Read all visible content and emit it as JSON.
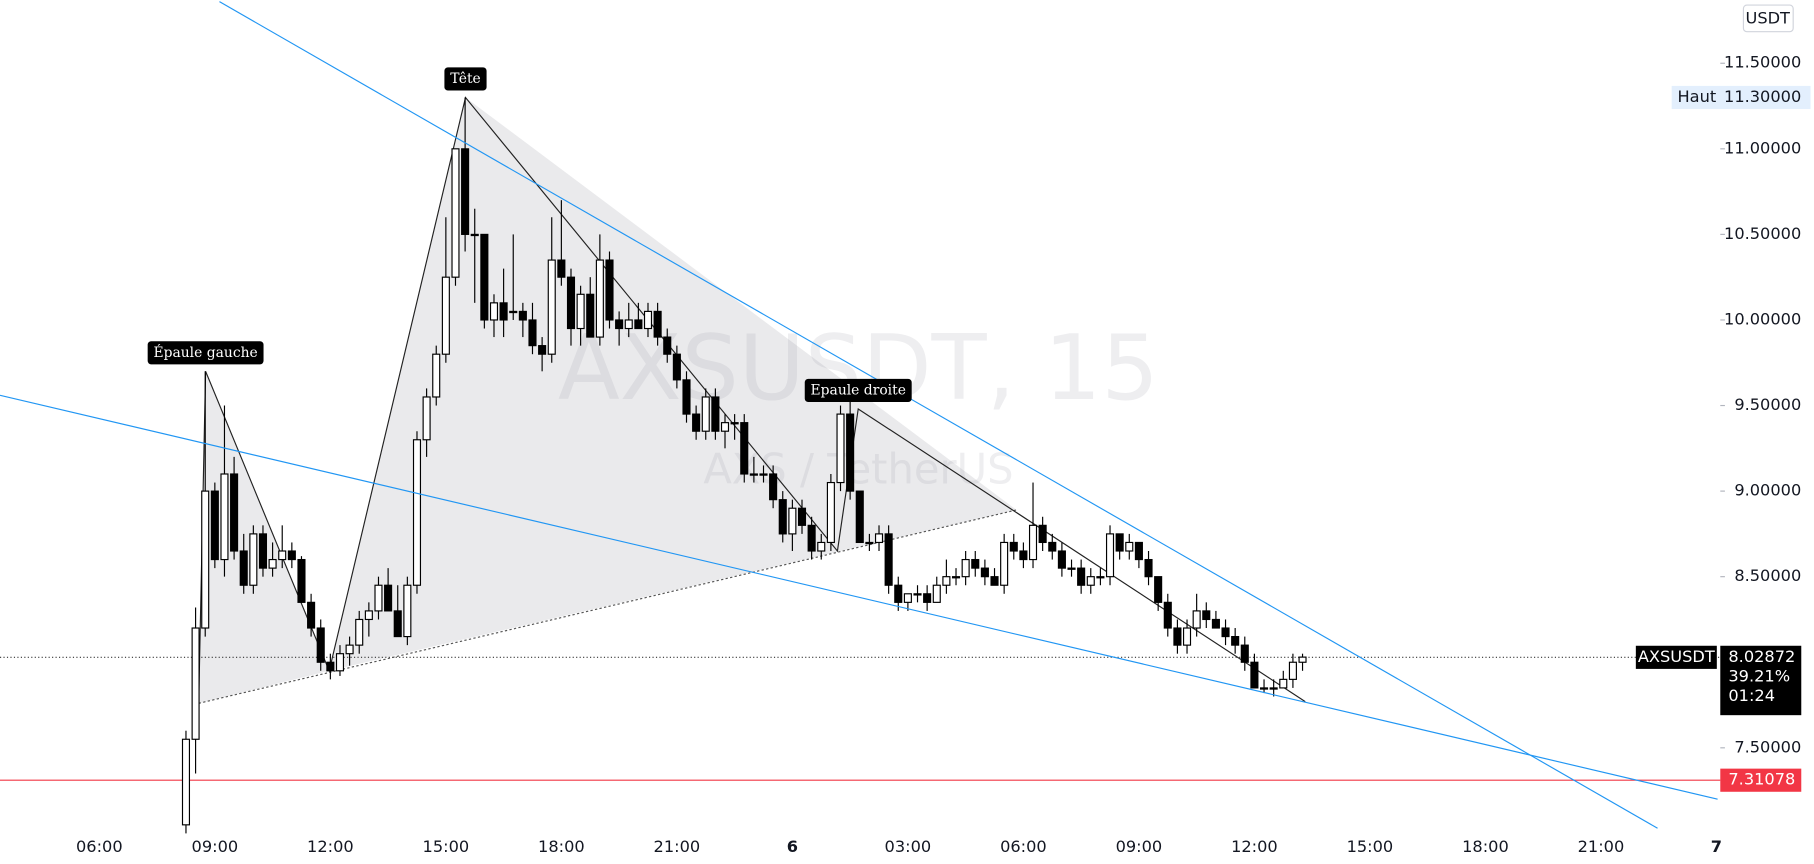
{
  "chart_data": {
    "type": "candlestick",
    "title": "AXSUSDT, 15",
    "subtitle": "AXS / TetherUS",
    "currency": "USDT",
    "symbol": "AXSUSDT",
    "x": [
      8.25,
      8.5,
      8.75,
      9,
      9.25,
      9.5,
      9.75,
      10,
      10.25,
      10.5,
      10.75,
      11,
      11.25,
      11.5,
      11.75,
      12,
      12.25,
      12.5,
      12.75,
      13,
      13.25,
      13.5,
      13.75,
      14,
      14.25,
      14.5,
      14.75,
      15,
      15.25,
      15.5,
      15.75,
      16,
      16.25,
      16.5,
      16.75,
      17,
      17.25,
      17.5,
      17.75,
      18,
      18.25,
      18.5,
      18.75,
      19,
      19.25,
      19.5,
      19.75,
      20,
      20.25,
      20.5,
      20.75,
      21,
      21.25,
      21.5,
      21.75,
      22,
      22.25,
      22.5,
      22.75,
      23,
      23.25,
      23.5,
      23.75,
      24,
      24.25,
      24.5,
      24.75,
      25,
      25.25,
      25.5,
      25.75,
      26,
      26.25,
      26.5,
      26.75,
      27,
      27.25,
      27.5,
      27.75,
      28,
      28.25,
      28.5,
      28.75,
      29,
      29.25,
      29.5,
      29.75,
      30,
      30.25,
      30.5,
      30.75,
      31,
      31.25,
      31.5,
      31.75,
      32,
      32.25,
      32.5,
      32.75,
      33,
      33.25,
      33.5,
      33.75,
      34,
      34.25,
      34.5,
      34.75,
      35,
      35.25,
      35.5,
      35.75,
      36,
      36.25,
      36.5,
      36.75,
      37,
      37.25
    ],
    "ohlc": [
      [
        7.05,
        7.6,
        7.0,
        7.55
      ],
      [
        7.55,
        8.32,
        7.35,
        8.2
      ],
      [
        8.2,
        9.7,
        8.15,
        9.0
      ],
      [
        9.0,
        9.05,
        8.55,
        8.6
      ],
      [
        8.6,
        9.5,
        8.5,
        9.1
      ],
      [
        9.1,
        9.2,
        8.6,
        8.65
      ],
      [
        8.65,
        8.75,
        8.4,
        8.45
      ],
      [
        8.45,
        8.8,
        8.4,
        8.75
      ],
      [
        8.75,
        8.8,
        8.5,
        8.55
      ],
      [
        8.55,
        8.7,
        8.5,
        8.6
      ],
      [
        8.6,
        8.8,
        8.55,
        8.65
      ],
      [
        8.65,
        8.7,
        8.55,
        8.6
      ],
      [
        8.6,
        8.62,
        8.35,
        8.35
      ],
      [
        8.35,
        8.4,
        8.15,
        8.2
      ],
      [
        8.2,
        8.25,
        7.95,
        8.0
      ],
      [
        8.0,
        8.05,
        7.9,
        7.95
      ],
      [
        7.95,
        8.1,
        7.92,
        8.05
      ],
      [
        8.05,
        8.15,
        7.98,
        8.1
      ],
      [
        8.1,
        8.3,
        8.05,
        8.25
      ],
      [
        8.25,
        8.35,
        8.15,
        8.3
      ],
      [
        8.3,
        8.5,
        8.25,
        8.45
      ],
      [
        8.45,
        8.55,
        8.3,
        8.3
      ],
      [
        8.3,
        8.45,
        8.15,
        8.15
      ],
      [
        8.15,
        8.5,
        8.1,
        8.45
      ],
      [
        8.45,
        9.35,
        8.4,
        9.3
      ],
      [
        9.3,
        9.6,
        9.2,
        9.55
      ],
      [
        9.55,
        9.85,
        9.5,
        9.8
      ],
      [
        9.8,
        10.6,
        9.75,
        10.25
      ],
      [
        10.25,
        11.0,
        10.2,
        11.0
      ],
      [
        11.0,
        11.3,
        10.4,
        10.5
      ],
      [
        10.5,
        10.65,
        10.1,
        10.5
      ],
      [
        10.5,
        10.5,
        9.95,
        10.0
      ],
      [
        10.0,
        10.15,
        9.9,
        10.1
      ],
      [
        10.1,
        10.3,
        9.9,
        10.0
      ],
      [
        10.05,
        10.5,
        10.0,
        10.05
      ],
      [
        10.05,
        10.1,
        9.9,
        10.0
      ],
      [
        10.0,
        10.1,
        9.8,
        9.85
      ],
      [
        9.85,
        9.9,
        9.7,
        9.8
      ],
      [
        9.8,
        10.6,
        9.75,
        10.35
      ],
      [
        10.35,
        10.7,
        10.2,
        10.25
      ],
      [
        10.25,
        10.3,
        9.85,
        9.95
      ],
      [
        9.95,
        10.2,
        9.85,
        10.15
      ],
      [
        10.15,
        10.25,
        9.9,
        9.9
      ],
      [
        9.9,
        10.5,
        9.85,
        10.35
      ],
      [
        10.35,
        10.4,
        9.95,
        10.0
      ],
      [
        10.0,
        10.05,
        9.85,
        9.95
      ],
      [
        9.95,
        10.1,
        9.9,
        10.0
      ],
      [
        10.0,
        10.1,
        9.95,
        9.95
      ],
      [
        9.95,
        10.1,
        9.9,
        10.05
      ],
      [
        10.05,
        10.1,
        9.85,
        9.9
      ],
      [
        9.9,
        9.95,
        9.75,
        9.8
      ],
      [
        9.8,
        9.85,
        9.6,
        9.65
      ],
      [
        9.65,
        9.7,
        9.4,
        9.45
      ],
      [
        9.45,
        9.5,
        9.3,
        9.35
      ],
      [
        9.35,
        9.6,
        9.3,
        9.55
      ],
      [
        9.55,
        9.6,
        9.3,
        9.35
      ],
      [
        9.35,
        9.45,
        9.25,
        9.4
      ],
      [
        9.4,
        9.45,
        9.3,
        9.4
      ],
      [
        9.4,
        9.45,
        9.05,
        9.1
      ],
      [
        9.1,
        9.2,
        9.05,
        9.1
      ],
      [
        9.1,
        9.15,
        9.05,
        9.1
      ],
      [
        9.1,
        9.15,
        8.9,
        8.95
      ],
      [
        8.95,
        9.0,
        8.7,
        8.75
      ],
      [
        8.75,
        8.95,
        8.65,
        8.9
      ],
      [
        8.9,
        8.95,
        8.75,
        8.8
      ],
      [
        8.8,
        8.85,
        8.6,
        8.65
      ],
      [
        8.65,
        8.75,
        8.6,
        8.7
      ],
      [
        8.7,
        9.1,
        8.65,
        9.05
      ],
      [
        9.05,
        9.5,
        9.0,
        9.45
      ],
      [
        9.45,
        9.55,
        8.95,
        9.0
      ],
      [
        9.0,
        9.0,
        8.7,
        8.7
      ],
      [
        8.7,
        8.75,
        8.65,
        8.7
      ],
      [
        8.7,
        8.8,
        8.65,
        8.75
      ],
      [
        8.75,
        8.8,
        8.4,
        8.45
      ],
      [
        8.45,
        8.5,
        8.3,
        8.35
      ],
      [
        8.35,
        8.4,
        8.3,
        8.4
      ],
      [
        8.4,
        8.45,
        8.35,
        8.4
      ],
      [
        8.4,
        8.45,
        8.3,
        8.35
      ],
      [
        8.35,
        8.5,
        8.35,
        8.45
      ],
      [
        8.45,
        8.6,
        8.4,
        8.5
      ],
      [
        8.5,
        8.55,
        8.45,
        8.5
      ],
      [
        8.5,
        8.65,
        8.45,
        8.6
      ],
      [
        8.6,
        8.65,
        8.5,
        8.55
      ],
      [
        8.55,
        8.6,
        8.45,
        8.5
      ],
      [
        8.5,
        8.55,
        8.45,
        8.45
      ],
      [
        8.45,
        8.75,
        8.4,
        8.7
      ],
      [
        8.7,
        8.75,
        8.6,
        8.65
      ],
      [
        8.65,
        8.7,
        8.55,
        8.6
      ],
      [
        8.6,
        9.05,
        8.55,
        8.8
      ],
      [
        8.8,
        8.85,
        8.65,
        8.7
      ],
      [
        8.7,
        8.75,
        8.6,
        8.65
      ],
      [
        8.65,
        8.7,
        8.5,
        8.55
      ],
      [
        8.55,
        8.6,
        8.5,
        8.55
      ],
      [
        8.55,
        8.6,
        8.4,
        8.45
      ],
      [
        8.45,
        8.55,
        8.4,
        8.5
      ],
      [
        8.5,
        8.55,
        8.45,
        8.5
      ],
      [
        8.5,
        8.8,
        8.45,
        8.75
      ],
      [
        8.75,
        8.75,
        8.6,
        8.65
      ],
      [
        8.65,
        8.75,
        8.6,
        8.7
      ],
      [
        8.7,
        8.7,
        8.55,
        8.6
      ],
      [
        8.6,
        8.65,
        8.45,
        8.5
      ],
      [
        8.5,
        8.5,
        8.3,
        8.35
      ],
      [
        8.35,
        8.4,
        8.15,
        8.2
      ],
      [
        8.2,
        8.25,
        8.05,
        8.1
      ],
      [
        8.1,
        8.25,
        8.05,
        8.2
      ],
      [
        8.2,
        8.4,
        8.15,
        8.3
      ],
      [
        8.3,
        8.35,
        8.2,
        8.25
      ],
      [
        8.25,
        8.3,
        8.2,
        8.2
      ],
      [
        8.2,
        8.25,
        8.1,
        8.15
      ],
      [
        8.15,
        8.2,
        8.05,
        8.1
      ],
      [
        8.1,
        8.15,
        7.95,
        8.0
      ],
      [
        8.0,
        8.05,
        7.85,
        7.85
      ],
      [
        7.85,
        7.9,
        7.82,
        7.85
      ],
      [
        7.85,
        7.9,
        7.8,
        7.85
      ],
      [
        7.85,
        7.95,
        7.85,
        7.9
      ],
      [
        7.9,
        8.05,
        7.85,
        8.0
      ],
      [
        8.0,
        8.05,
        7.95,
        8.03
      ]
    ],
    "up_color": "#ffffff",
    "down_color": "#000000",
    "xlim": [
      3.42,
      48.1
    ],
    "ylim": [
      7.02,
      11.86
    ],
    "xticks": [
      {
        "value": 6,
        "label": "06:00"
      },
      {
        "value": 9,
        "label": "09:00"
      },
      {
        "value": 12,
        "label": "12:00"
      },
      {
        "value": 15,
        "label": "15:00"
      },
      {
        "value": 18,
        "label": "18:00"
      },
      {
        "value": 21,
        "label": "21:00"
      },
      {
        "value": 24,
        "label": "6"
      },
      {
        "value": 27,
        "label": "03:00"
      },
      {
        "value": 30,
        "label": "06:00"
      },
      {
        "value": 33,
        "label": "09:00"
      },
      {
        "value": 36,
        "label": "12:00"
      },
      {
        "value": 39,
        "label": "15:00"
      },
      {
        "value": 42,
        "label": "18:00"
      },
      {
        "value": 45,
        "label": "21:00"
      },
      {
        "value": 48,
        "label": "7"
      }
    ],
    "yticks": [
      {
        "value": 7.5,
        "label": "7.50000"
      },
      {
        "value": 8.5,
        "label": "8.50000"
      },
      {
        "value": 9,
        "label": "9.00000"
      },
      {
        "value": 9.5,
        "label": "9.50000"
      },
      {
        "value": 10,
        "label": "10.00000"
      },
      {
        "value": 10.5,
        "label": "10.50000"
      },
      {
        "value": 11,
        "label": "11.00000"
      },
      {
        "value": 11.5,
        "label": "11.50000"
      }
    ],
    "high_label": "Haut",
    "high": {
      "value": 11.3,
      "label": "11.30000"
    },
    "last_price": 8.02872,
    "change": {
      "value": 39.21,
      "label": "39.21%"
    },
    "countdown": "01:24",
    "support": 7.31078,
    "support_color": "#f23645",
    "trendline_color": "#2196f3",
    "trendlines": [
      [
        [
          9.12,
          11.86
        ],
        [
          46.47,
          7.03
        ]
      ],
      [
        [
          3.42,
          9.56
        ],
        [
          48.03,
          7.2
        ]
      ]
    ],
    "pattern": {
      "points": [
        [
          8.58,
          7.76
        ],
        [
          8.76,
          9.7
        ],
        [
          11.97,
          7.95
        ],
        [
          15.51,
          11.3
        ],
        [
          25.17,
          8.65
        ],
        [
          25.71,
          9.48
        ],
        [
          37.32,
          7.77
        ]
      ],
      "neckline": [
        [
          8.58,
          7.76
        ],
        [
          29.82,
          8.89
        ]
      ],
      "labels": [
        {
          "point": 1,
          "text": "Épaule gauche"
        },
        {
          "point": 3,
          "text": "Tête"
        },
        {
          "point": 5,
          "text": "Epaule droite"
        }
      ]
    }
  }
}
